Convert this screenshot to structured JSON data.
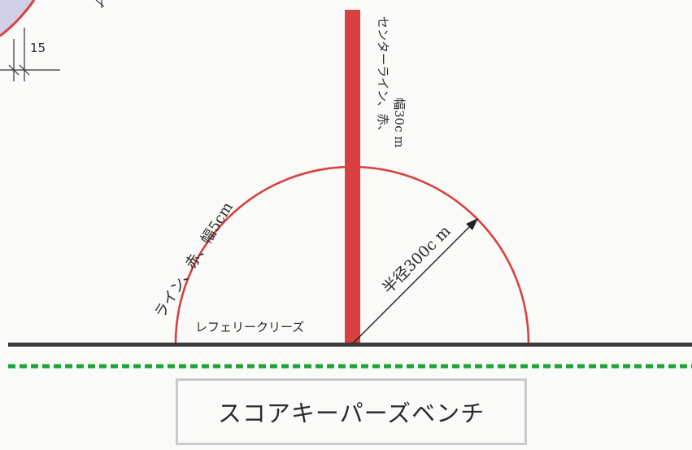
{
  "labels": {
    "dimension_15": "15",
    "center_line_1": "センターライン、赤、",
    "center_line_2": "幅30c m",
    "arc_line": "ライン、赤、幅5cm",
    "radius": "半径300c m",
    "referee_crease": "レフェリークリーズ",
    "scorekeepers_bench": "スコアキーパーズベンチ"
  },
  "colors": {
    "red": "#d8413f",
    "dark_line": "#3b3b3b",
    "green_dash": "#1fa23a",
    "bench_border": "#c9c9c9",
    "corner_fill": "#cfcfe8"
  }
}
